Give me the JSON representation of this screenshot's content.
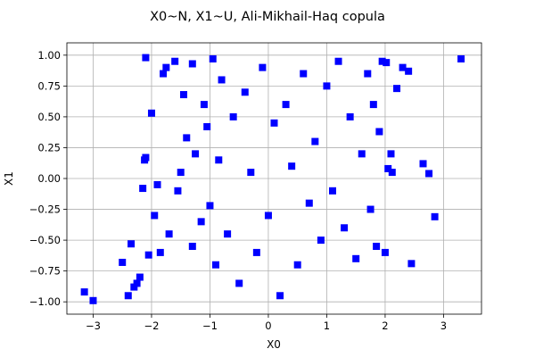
{
  "chart_data": {
    "type": "scatter",
    "title": "X0~N, X1~U, Ali-Mikhail-Haq copula",
    "xlabel": "X0",
    "ylabel": "X1",
    "xlim": [
      -3.45,
      3.65
    ],
    "ylim": [
      -1.1,
      1.1
    ],
    "x_ticks": [
      -3,
      -2,
      -1,
      0,
      1,
      2,
      3
    ],
    "y_ticks": [
      -1.0,
      -0.75,
      -0.5,
      -0.25,
      0.0,
      0.25,
      0.5,
      0.75,
      1.0
    ],
    "x_tick_labels": [
      "−3",
      "−2",
      "−1",
      "0",
      "1",
      "2",
      "3"
    ],
    "y_tick_labels": [
      "−1.00",
      "−0.75",
      "−0.50",
      "−0.25",
      "0.00",
      "0.25",
      "0.50",
      "0.75",
      "1.00"
    ],
    "grid": true,
    "marker": "square",
    "color": "#0000ff",
    "series": [
      {
        "points": [
          [
            -3.15,
            -0.92
          ],
          [
            -3.0,
            -0.99
          ],
          [
            -2.5,
            -0.68
          ],
          [
            -2.4,
            -0.95
          ],
          [
            -2.35,
            -0.53
          ],
          [
            -2.3,
            -0.88
          ],
          [
            -2.25,
            -0.85
          ],
          [
            -2.2,
            -0.8
          ],
          [
            -2.15,
            -0.08
          ],
          [
            -2.12,
            0.15
          ],
          [
            -2.1,
            0.17
          ],
          [
            -2.1,
            0.98
          ],
          [
            -2.05,
            -0.62
          ],
          [
            -2.0,
            0.53
          ],
          [
            -1.95,
            -0.3
          ],
          [
            -1.9,
            -0.05
          ],
          [
            -1.85,
            -0.6
          ],
          [
            -1.8,
            0.85
          ],
          [
            -1.75,
            0.9
          ],
          [
            -1.7,
            -0.45
          ],
          [
            -1.6,
            0.95
          ],
          [
            -1.55,
            -0.1
          ],
          [
            -1.5,
            0.05
          ],
          [
            -1.45,
            0.68
          ],
          [
            -1.4,
            0.33
          ],
          [
            -1.3,
            0.93
          ],
          [
            -1.3,
            -0.55
          ],
          [
            -1.25,
            0.2
          ],
          [
            -1.15,
            -0.35
          ],
          [
            -1.1,
            0.6
          ],
          [
            -1.05,
            0.42
          ],
          [
            -1.0,
            -0.22
          ],
          [
            -0.95,
            0.97
          ],
          [
            -0.9,
            -0.7
          ],
          [
            -0.85,
            0.15
          ],
          [
            -0.8,
            0.8
          ],
          [
            -0.7,
            -0.45
          ],
          [
            -0.6,
            0.5
          ],
          [
            -0.5,
            -0.85
          ],
          [
            -0.4,
            0.7
          ],
          [
            -0.3,
            0.05
          ],
          [
            -0.2,
            -0.6
          ],
          [
            -0.1,
            0.9
          ],
          [
            0.0,
            -0.3
          ],
          [
            0.1,
            0.45
          ],
          [
            0.2,
            -0.95
          ],
          [
            0.3,
            0.6
          ],
          [
            0.4,
            0.1
          ],
          [
            0.5,
            -0.7
          ],
          [
            0.6,
            0.85
          ],
          [
            0.7,
            -0.2
          ],
          [
            0.8,
            0.3
          ],
          [
            0.9,
            -0.5
          ],
          [
            1.0,
            0.75
          ],
          [
            1.1,
            -0.1
          ],
          [
            1.2,
            0.95
          ],
          [
            1.3,
            -0.4
          ],
          [
            1.4,
            0.5
          ],
          [
            1.5,
            -0.65
          ],
          [
            1.6,
            0.2
          ],
          [
            1.7,
            0.85
          ],
          [
            1.75,
            -0.25
          ],
          [
            1.8,
            0.6
          ],
          [
            1.85,
            -0.55
          ],
          [
            1.9,
            0.38
          ],
          [
            1.95,
            0.95
          ],
          [
            2.0,
            -0.6
          ],
          [
            2.02,
            0.94
          ],
          [
            2.05,
            0.08
          ],
          [
            2.1,
            0.2
          ],
          [
            2.12,
            0.05
          ],
          [
            2.2,
            0.73
          ],
          [
            2.3,
            0.9
          ],
          [
            2.4,
            0.87
          ],
          [
            2.45,
            -0.69
          ],
          [
            2.65,
            0.12
          ],
          [
            2.75,
            0.04
          ],
          [
            2.85,
            -0.31
          ],
          [
            3.3,
            0.97
          ]
        ]
      }
    ]
  }
}
